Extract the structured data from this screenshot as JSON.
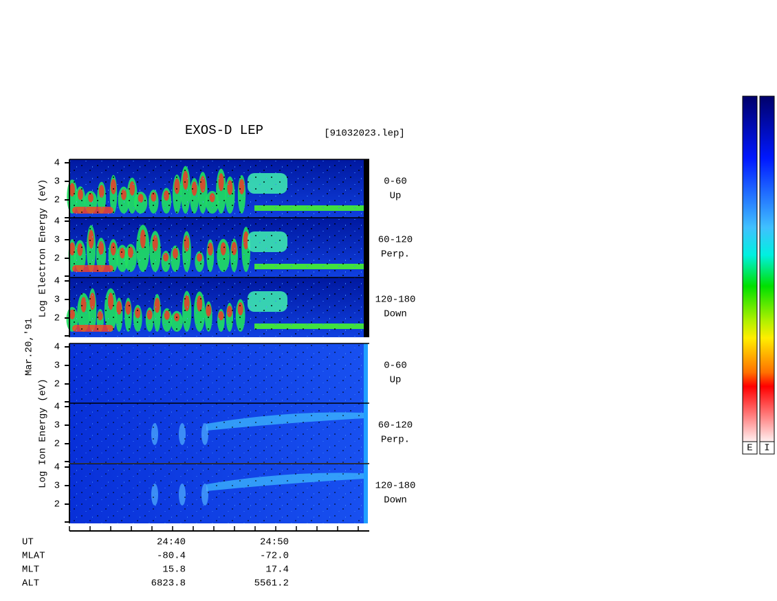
{
  "header": {
    "title": "EXOS-D LEP",
    "file": "[91032023.lep]"
  },
  "date": "Mar.20,'91",
  "groups": [
    {
      "axis_label": "Log  Electron  Energy (eV)",
      "panels": [
        {
          "angle": "0-60",
          "direction": "Up"
        },
        {
          "angle": "60-120",
          "direction": "Perp."
        },
        {
          "angle": "120-180",
          "direction": "Down"
        }
      ]
    },
    {
      "axis_label": "Log  Ion  Energy (eV)",
      "panels": [
        {
          "angle": "0-60",
          "direction": "Up"
        },
        {
          "angle": "60-120",
          "direction": "Perp."
        },
        {
          "angle": "120-180",
          "direction": "Down"
        }
      ]
    }
  ],
  "y_ticks": [
    4,
    3,
    2
  ],
  "x_ticks": [
    "24:40",
    "24:50"
  ],
  "footer": {
    "labels": [
      "UT",
      "MLAT",
      "MLT",
      "ALT"
    ],
    "rows": [
      [
        "-80.4",
        "-72.0"
      ],
      [
        "15.8",
        "17.4"
      ],
      [
        "6823.8",
        "5561.2"
      ]
    ]
  },
  "colorbars": [
    "E",
    "I"
  ]
}
